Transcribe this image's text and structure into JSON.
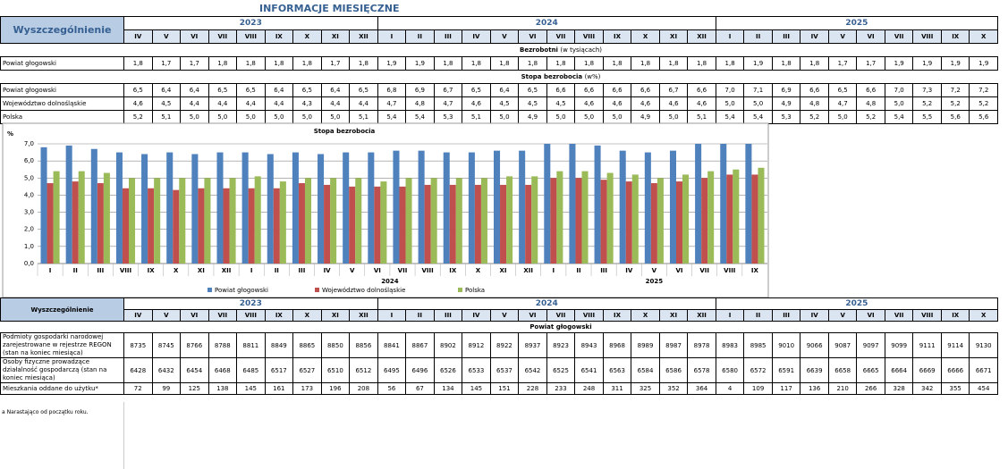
{
  "title": "INFORMACJE MIESIĘCZNE",
  "top_table": {
    "header": "Wyszczególnienie",
    "years": [
      {
        "label": "2023",
        "months": [
          "IV",
          "V",
          "VI",
          "VII",
          "VIII",
          "IX",
          "X",
          "XI",
          "XII"
        ]
      },
      {
        "label": "2024",
        "months": [
          "I",
          "II",
          "III",
          "IV",
          "V",
          "VI",
          "VII",
          "VIII",
          "IX",
          "X",
          "XI",
          "XII"
        ]
      },
      {
        "label": "2025",
        "months": [
          "I",
          "II",
          "III",
          "IV",
          "V",
          "VI",
          "VII",
          "VIII",
          "IX",
          "X"
        ]
      }
    ],
    "sections": [
      {
        "title": "Bezrobotni",
        "subtitle": "(w tysiącach)",
        "rows": [
          {
            "label": "Powiat głogowski",
            "values": [
              "1,8",
              "1,7",
              "1,7",
              "1,8",
              "1,8",
              "1,8",
              "1,8",
              "1,7",
              "1,8",
              "1,9",
              "1,9",
              "1,8",
              "1,8",
              "1,8",
              "1,8",
              "1,8",
              "1,8",
              "1,8",
              "1,8",
              "1,8",
              "1,8",
              "1,8",
              "1,9",
              "1,8",
              "1,8",
              "1,7",
              "1,7",
              "1,9",
              "1,9",
              "1,9",
              "1,9"
            ]
          }
        ]
      },
      {
        "title": "Stopa bezrobocia",
        "subtitle": "(w%)",
        "rows": [
          {
            "label": "Powiat głogowski",
            "values": [
              "6,5",
              "6,4",
              "6,4",
              "6,5",
              "6,5",
              "6,4",
              "6,5",
              "6,4",
              "6,5",
              "6,8",
              "6,9",
              "6,7",
              "6,5",
              "6,4",
              "6,5",
              "6,6",
              "6,6",
              "6,6",
              "6,6",
              "6,7",
              "6,6",
              "7,0",
              "7,1",
              "6,9",
              "6,6",
              "6,5",
              "6,6",
              "7,0",
              "7,3",
              "7,2",
              "7,2"
            ]
          },
          {
            "label": "Województwo dolnośląskie",
            "values": [
              "4,6",
              "4,5",
              "4,4",
              "4,4",
              "4,4",
              "4,4",
              "4,3",
              "4,4",
              "4,4",
              "4,7",
              "4,8",
              "4,7",
              "4,6",
              "4,5",
              "4,5",
              "4,5",
              "4,6",
              "4,6",
              "4,6",
              "4,6",
              "4,6",
              "5,0",
              "5,0",
              "4,9",
              "4,8",
              "4,7",
              "4,8",
              "5,0",
              "5,2",
              "5,2",
              "5,2"
            ]
          },
          {
            "label": "Polska",
            "values": [
              "5,2",
              "5,1",
              "5,0",
              "5,0",
              "5,0",
              "5,0",
              "5,0",
              "5,0",
              "5,1",
              "5,4",
              "5,4",
              "5,3",
              "5,1",
              "5,0",
              "4,9",
              "5,0",
              "5,0",
              "5,0",
              "4,9",
              "5,0",
              "5,1",
              "5,4",
              "5,4",
              "5,3",
              "5,2",
              "5,0",
              "5,2",
              "5,4",
              "5,5",
              "5,6",
              "5,6"
            ]
          }
        ]
      }
    ]
  },
  "chart_data": {
    "type": "bar",
    "title": "Stopa bezrobocia",
    "y_label": "%",
    "categories": [
      "I",
      "II",
      "III",
      "VIII",
      "IX",
      "X",
      "XI",
      "XII",
      "I",
      "II",
      "III",
      "IV",
      "V",
      "VI",
      "VII",
      "VIII",
      "IX",
      "X",
      "XI",
      "XII",
      "I",
      "II",
      "III",
      "IV",
      "V",
      "VI",
      "VII",
      "VIII",
      "IX"
    ],
    "year_labels": [
      "2024",
      "2025"
    ],
    "ylim": [
      0,
      7
    ],
    "yticks": [
      {
        "value": 0,
        "label": "0,0"
      },
      {
        "value": 1,
        "label": "1,0"
      },
      {
        "value": 2,
        "label": "2,0"
      },
      {
        "value": 3,
        "label": "3,0"
      },
      {
        "value": 4,
        "label": "4,0"
      },
      {
        "value": 5,
        "label": "5,0"
      },
      {
        "value": 6,
        "label": "6,0"
      },
      {
        "value": 7,
        "label": "7,0"
      }
    ],
    "grid": true,
    "legend": "bottom",
    "series": [
      {
        "name": "Powiat głogowski",
        "color": "#4f81bd",
        "values": [
          6.8,
          6.9,
          6.7,
          6.5,
          6.4,
          6.5,
          6.4,
          6.5,
          6.5,
          6.4,
          6.5,
          6.4,
          6.5,
          6.5,
          6.6,
          6.6,
          6.5,
          6.5,
          6.6,
          6.6,
          7.0,
          7.0,
          6.9,
          6.6,
          6.5,
          6.6,
          7.0,
          7.0,
          7.0
        ]
      },
      {
        "name": "Województwo dolnośląskie",
        "color": "#c0504d",
        "values": [
          4.7,
          4.8,
          4.7,
          4.4,
          4.4,
          4.3,
          4.4,
          4.4,
          4.4,
          4.4,
          4.7,
          4.6,
          4.5,
          4.5,
          4.5,
          4.6,
          4.6,
          4.6,
          4.6,
          4.6,
          5.0,
          5.0,
          4.9,
          4.8,
          4.7,
          4.8,
          5.0,
          5.2,
          5.2
        ]
      },
      {
        "name": "Polska",
        "color": "#9bbb59",
        "values": [
          5.4,
          5.4,
          5.3,
          5.0,
          5.0,
          5.0,
          5.0,
          5.0,
          5.1,
          4.8,
          5.0,
          5.0,
          5.0,
          4.8,
          5.0,
          5.0,
          5.0,
          5.0,
          5.1,
          5.1,
          5.4,
          5.4,
          5.3,
          5.2,
          5.0,
          5.2,
          5.4,
          5.5,
          5.6
        ]
      }
    ]
  },
  "bottom_table": {
    "header": "Wyszczególnienie",
    "years": [
      {
        "label": "2023",
        "months": [
          "IV",
          "V",
          "VI",
          "VII",
          "VIII",
          "IX",
          "X",
          "XI",
          "XII"
        ]
      },
      {
        "label": "2024",
        "months": [
          "I",
          "II",
          "III",
          "IV",
          "V",
          "VI",
          "VII",
          "VIII",
          "IX",
          "X",
          "XI",
          "XII"
        ]
      },
      {
        "label": "2025",
        "months": [
          "I",
          "II",
          "III",
          "IV",
          "V",
          "VI",
          "VII",
          "VIII",
          "IX",
          "X"
        ]
      }
    ],
    "sections": [
      {
        "title": "Powiat głogowski",
        "rows": [
          {
            "label": "Podmioty gospodarki narodowej zarejestrowane w rejestrze REGON (stan na koniec miesiąca)",
            "values": [
              "8735",
              "8745",
              "8766",
              "8788",
              "8811",
              "8849",
              "8865",
              "8850",
              "8856",
              "8841",
              "8867",
              "8902",
              "8912",
              "8922",
              "8937",
              "8923",
              "8943",
              "8968",
              "8989",
              "8987",
              "8978",
              "8983",
              "8985",
              "9010",
              "9066",
              "9087",
              "9097",
              "9099",
              "9111",
              "9114",
              "9130"
            ]
          },
          {
            "label": "Osoby fizyczne prowadzące działalność gospodarczą (stan na koniec miesiąca)",
            "values": [
              "6428",
              "6432",
              "6454",
              "6468",
              "6485",
              "6517",
              "6527",
              "6510",
              "6512",
              "6495",
              "6496",
              "6526",
              "6533",
              "6537",
              "6542",
              "6525",
              "6541",
              "6563",
              "6584",
              "6586",
              "6578",
              "6580",
              "6572",
              "6591",
              "6639",
              "6658",
              "6665",
              "6664",
              "6669",
              "6666",
              "6671"
            ]
          },
          {
            "label": "Mieszkania oddane do użytku*",
            "values": [
              "72",
              "99",
              "125",
              "138",
              "145",
              "161",
              "173",
              "196",
              "208",
              "56",
              "67",
              "134",
              "145",
              "151",
              "228",
              "233",
              "248",
              "311",
              "325",
              "352",
              "364",
              "4",
              "109",
              "117",
              "136",
              "210",
              "266",
              "328",
              "342",
              "355",
              "454"
            ]
          }
        ]
      }
    ]
  },
  "footnote": "a Narastająco od początku roku."
}
